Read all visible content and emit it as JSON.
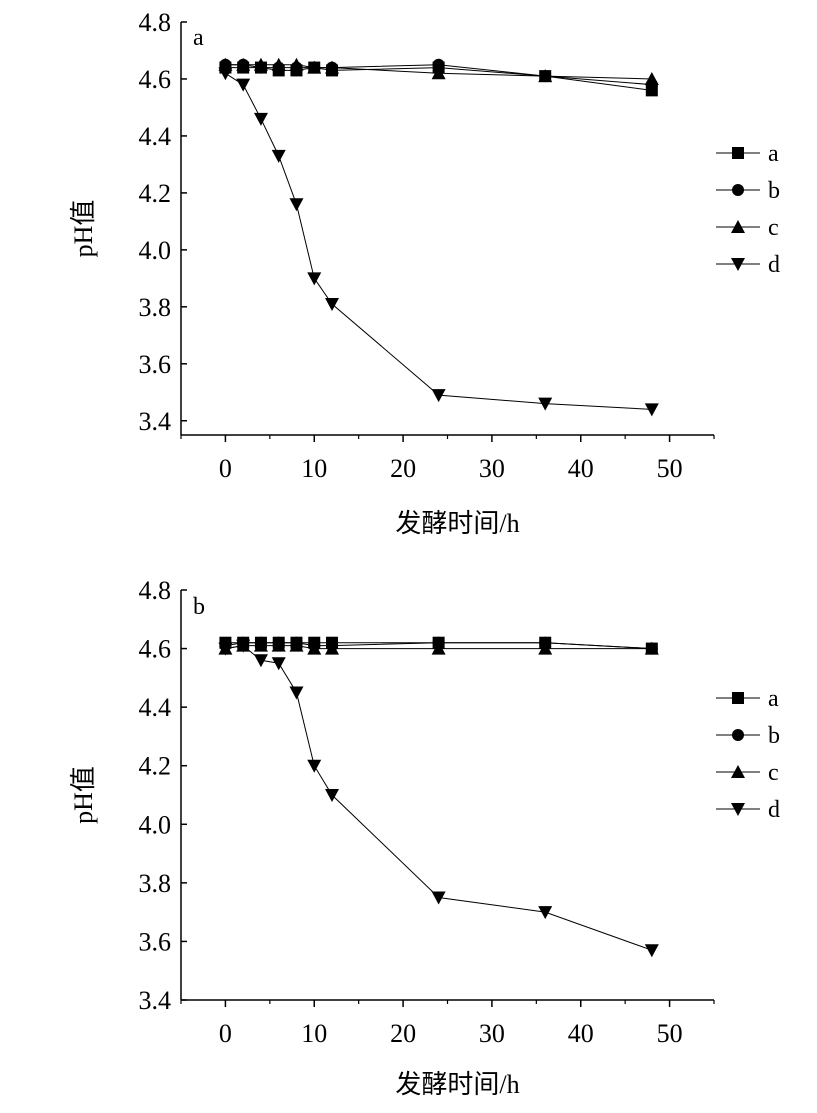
{
  "chart_data": [
    {
      "type": "line",
      "panel_label": "a",
      "xlabel": "发酵时间/h",
      "ylabel": "pH值",
      "xlim": [
        -5,
        55
      ],
      "ylim": [
        3.35,
        4.8
      ],
      "xticks": [
        0,
        10,
        20,
        30,
        40,
        50
      ],
      "xtick_labels": [
        "0",
        "10",
        "20",
        "30",
        "40",
        "50"
      ],
      "yticks": [
        3.4,
        3.6,
        3.8,
        4.0,
        4.2,
        4.4,
        4.6,
        4.8
      ],
      "ytick_labels": [
        "3.4",
        "3.6",
        "3.8",
        "4.0",
        "4.2",
        "4.4",
        "4.6",
        "4.8"
      ],
      "legend": "right",
      "grid": false,
      "x": [
        0,
        2,
        4,
        6,
        8,
        10,
        12,
        24,
        36,
        48
      ],
      "series": [
        {
          "name": "a",
          "marker": "square",
          "values": [
            4.64,
            4.64,
            4.64,
            4.63,
            4.63,
            4.64,
            4.63,
            4.64,
            4.61,
            4.56
          ]
        },
        {
          "name": "b",
          "marker": "circle",
          "values": [
            4.65,
            4.65,
            4.64,
            4.64,
            4.64,
            4.64,
            4.64,
            4.65,
            4.61,
            4.58
          ]
        },
        {
          "name": "c",
          "marker": "triangle-up",
          "values": [
            4.65,
            4.65,
            4.65,
            4.65,
            4.65,
            4.64,
            4.64,
            4.62,
            4.61,
            4.6
          ]
        },
        {
          "name": "d",
          "marker": "triangle-down",
          "values": [
            4.62,
            4.58,
            4.46,
            4.33,
            4.16,
            3.9,
            3.81,
            3.49,
            3.46,
            3.44
          ]
        }
      ]
    },
    {
      "type": "line",
      "panel_label": "b",
      "xlabel": "发酵时间/h",
      "ylabel": "pH值",
      "xlim": [
        -5,
        55
      ],
      "ylim": [
        3.4,
        4.8
      ],
      "xticks": [
        0,
        10,
        20,
        30,
        40,
        50
      ],
      "xtick_labels": [
        "0",
        "10",
        "20",
        "30",
        "40",
        "50"
      ],
      "yticks": [
        3.4,
        3.6,
        3.8,
        4.0,
        4.2,
        4.4,
        4.6,
        4.8
      ],
      "ytick_labels": [
        "3.4",
        "3.6",
        "3.8",
        "4.0",
        "4.2",
        "4.4",
        "4.6",
        "4.8"
      ],
      "legend": "right",
      "grid": false,
      "x": [
        0,
        2,
        4,
        6,
        8,
        10,
        12,
        24,
        36,
        48
      ],
      "series": [
        {
          "name": "a",
          "marker": "square",
          "values": [
            4.62,
            4.62,
            4.62,
            4.62,
            4.62,
            4.62,
            4.62,
            4.62,
            4.62,
            4.6
          ]
        },
        {
          "name": "b",
          "marker": "circle",
          "values": [
            4.61,
            4.62,
            4.62,
            4.62,
            4.62,
            4.61,
            4.61,
            4.62,
            4.62,
            4.6
          ]
        },
        {
          "name": "c",
          "marker": "triangle-up",
          "values": [
            4.6,
            4.61,
            4.61,
            4.61,
            4.61,
            4.6,
            4.6,
            4.6,
            4.6,
            4.6
          ]
        },
        {
          "name": "d",
          "marker": "triangle-down",
          "values": [
            4.6,
            4.61,
            4.56,
            4.55,
            4.45,
            4.2,
            4.1,
            3.75,
            3.7,
            3.57
          ]
        }
      ]
    }
  ]
}
